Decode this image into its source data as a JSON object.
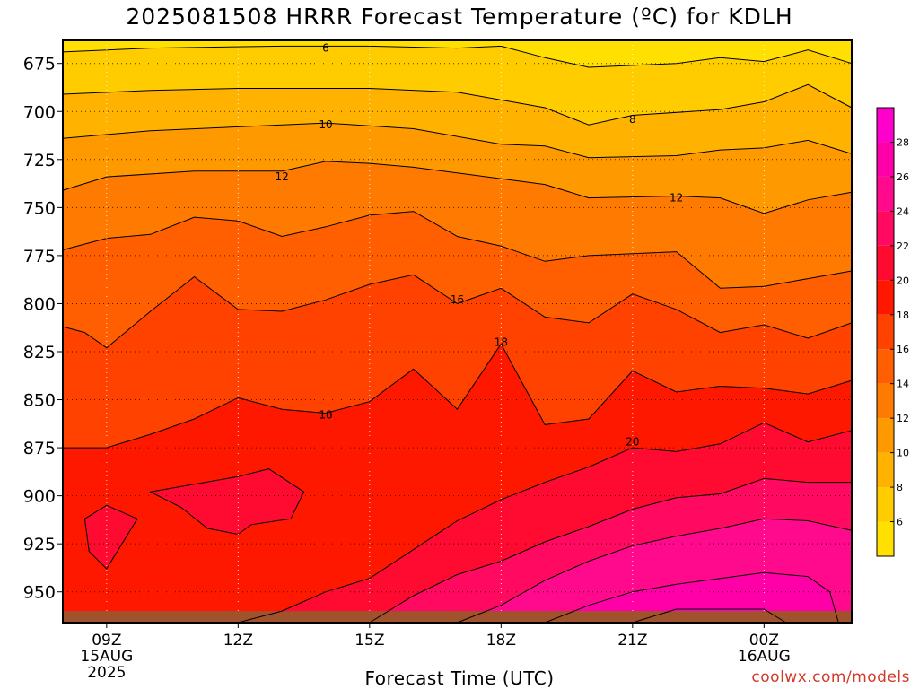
{
  "chart_data": {
    "type": "contour",
    "title": "2025081508 HRRR Forecast Temperature (ºC) for KDLH",
    "xlabel": "Forecast Time (UTC)",
    "ylabel": "",
    "credit": "coolwx.com/models",
    "x_ticks": [
      {
        "label": "09Z",
        "sub": [
          "15AUG",
          "2025"
        ],
        "hour": 9
      },
      {
        "label": "12Z",
        "sub": [],
        "hour": 12
      },
      {
        "label": "15Z",
        "sub": [],
        "hour": 15
      },
      {
        "label": "18Z",
        "sub": [],
        "hour": 18
      },
      {
        "label": "21Z",
        "sub": [],
        "hour": 21
      },
      {
        "label": "00Z",
        "sub": [
          "16AUG"
        ],
        "hour": 24
      }
    ],
    "xlim_hours": [
      8,
      26
    ],
    "y_ticks": [
      675,
      700,
      725,
      750,
      775,
      800,
      825,
      850,
      875,
      900,
      925,
      950
    ],
    "ylim_hpa": [
      663,
      966
    ],
    "colorbar": {
      "ticks": [
        6,
        8,
        10,
        12,
        14,
        16,
        18,
        20,
        22,
        24,
        26,
        28
      ],
      "bins": [
        {
          "low": 4,
          "high": 6,
          "color": "#ffe000"
        },
        {
          "low": 6,
          "high": 8,
          "color": "#ffcc00"
        },
        {
          "low": 8,
          "high": 10,
          "color": "#ffb300"
        },
        {
          "low": 10,
          "high": 12,
          "color": "#ff9900"
        },
        {
          "low": 12,
          "high": 14,
          "color": "#ff7a00"
        },
        {
          "low": 14,
          "high": 16,
          "color": "#ff5f00"
        },
        {
          "low": 16,
          "high": 18,
          "color": "#ff4200"
        },
        {
          "low": 18,
          "high": 20,
          "color": "#ff1800"
        },
        {
          "low": 20,
          "high": 22,
          "color": "#ff0a30"
        },
        {
          "low": 22,
          "high": 24,
          "color": "#ff0a60"
        },
        {
          "low": 24,
          "high": 26,
          "color": "#ff0a8c"
        },
        {
          "low": 26,
          "high": 28,
          "color": "#ff00a8"
        },
        {
          "low": 28,
          "high": 30,
          "color": "#ff00cc"
        }
      ]
    },
    "contour_labels": [
      {
        "text": "6",
        "hour": 14.0,
        "hpa": 667
      },
      {
        "text": "10",
        "hour": 14.0,
        "hpa": 707
      },
      {
        "text": "8",
        "hour": 21.0,
        "hpa": 704
      },
      {
        "text": "12",
        "hour": 13.0,
        "hpa": 734
      },
      {
        "text": "12",
        "hour": 22.0,
        "hpa": 745
      },
      {
        "text": "16",
        "hour": 17.0,
        "hpa": 798
      },
      {
        "text": "18",
        "hour": 18.0,
        "hpa": 820
      },
      {
        "text": "18",
        "hour": 14.0,
        "hpa": 858
      },
      {
        "text": "20",
        "hour": 21.0,
        "hpa": 872
      }
    ],
    "isotherms": [
      {
        "value": 6,
        "points": [
          [
            8,
            669
          ],
          [
            10,
            667
          ],
          [
            13,
            666
          ],
          [
            15,
            666
          ],
          [
            17,
            667
          ],
          [
            18,
            666
          ],
          [
            19,
            672
          ],
          [
            20,
            677
          ],
          [
            22,
            675
          ],
          [
            23,
            672
          ],
          [
            24,
            674
          ],
          [
            25,
            668
          ],
          [
            26,
            675
          ]
        ]
      },
      {
        "value": 8,
        "points": [
          [
            8,
            691
          ],
          [
            10,
            689
          ],
          [
            12,
            688
          ],
          [
            15,
            688
          ],
          [
            17,
            690
          ],
          [
            19,
            698
          ],
          [
            20,
            707
          ],
          [
            21,
            702
          ],
          [
            23,
            699
          ],
          [
            24,
            695
          ],
          [
            25,
            686
          ],
          [
            26,
            698
          ]
        ]
      },
      {
        "value": 10,
        "points": [
          [
            8,
            714
          ],
          [
            10,
            710
          ],
          [
            12,
            708
          ],
          [
            14,
            706
          ],
          [
            16,
            709
          ],
          [
            18,
            717
          ],
          [
            19,
            718
          ],
          [
            20,
            724
          ],
          [
            22,
            723
          ],
          [
            23,
            720
          ],
          [
            24,
            719
          ],
          [
            25,
            715
          ],
          [
            26,
            722
          ]
        ]
      },
      {
        "value": 12,
        "points": [
          [
            8,
            741
          ],
          [
            9,
            734
          ],
          [
            11,
            731
          ],
          [
            13,
            731
          ],
          [
            14,
            726
          ],
          [
            15,
            727
          ],
          [
            16,
            729
          ],
          [
            17,
            732
          ],
          [
            19,
            738
          ],
          [
            20,
            745
          ],
          [
            22,
            744
          ],
          [
            23,
            745
          ],
          [
            24,
            753
          ],
          [
            25,
            746
          ],
          [
            26,
            742
          ]
        ]
      },
      {
        "value": 14,
        "points": [
          [
            8,
            772
          ],
          [
            9,
            766
          ],
          [
            10,
            764
          ],
          [
            11,
            755
          ],
          [
            12,
            757
          ],
          [
            13,
            765
          ],
          [
            14,
            760
          ],
          [
            15,
            754
          ],
          [
            16,
            752
          ],
          [
            17,
            765
          ],
          [
            18,
            770
          ],
          [
            19,
            778
          ],
          [
            20,
            775
          ],
          [
            22,
            773
          ],
          [
            23,
            792
          ],
          [
            24,
            791
          ],
          [
            25,
            787
          ],
          [
            26,
            783
          ]
        ]
      },
      {
        "value": 16,
        "points": [
          [
            8,
            812
          ],
          [
            8.5,
            815
          ],
          [
            9,
            823
          ],
          [
            10,
            804
          ],
          [
            11,
            786
          ],
          [
            12,
            803
          ],
          [
            13,
            804
          ],
          [
            14,
            798
          ],
          [
            15,
            790
          ],
          [
            16,
            785
          ],
          [
            17,
            800
          ],
          [
            18,
            792
          ],
          [
            19,
            807
          ],
          [
            20,
            810
          ],
          [
            21,
            795
          ],
          [
            22,
            803
          ],
          [
            23,
            815
          ],
          [
            24,
            811
          ],
          [
            25,
            818
          ],
          [
            26,
            810
          ]
        ]
      },
      {
        "value": 18,
        "points": [
          [
            8,
            875
          ],
          [
            9,
            875
          ],
          [
            10,
            868
          ],
          [
            11,
            860
          ],
          [
            12,
            849
          ],
          [
            13,
            855
          ],
          [
            14,
            857
          ],
          [
            15,
            851
          ],
          [
            16,
            834
          ],
          [
            17,
            855
          ],
          [
            18,
            821
          ],
          [
            19,
            863
          ],
          [
            20,
            860
          ],
          [
            21,
            835
          ],
          [
            22,
            846
          ],
          [
            23,
            843
          ],
          [
            24,
            844
          ],
          [
            25,
            847
          ],
          [
            26,
            840
          ]
        ]
      },
      {
        "value": 20,
        "points": [
          [
            12,
            966
          ],
          [
            13,
            960
          ],
          [
            14,
            950
          ],
          [
            15,
            943
          ],
          [
            16,
            928
          ],
          [
            17,
            913
          ],
          [
            18,
            902
          ],
          [
            19,
            893
          ],
          [
            20,
            885
          ],
          [
            21,
            875
          ],
          [
            22,
            877
          ],
          [
            23,
            873
          ],
          [
            24,
            862
          ],
          [
            25,
            872
          ],
          [
            26,
            866
          ]
        ]
      },
      {
        "value": 22,
        "points": [
          [
            15,
            966
          ],
          [
            16,
            952
          ],
          [
            17,
            941
          ],
          [
            18,
            934
          ],
          [
            19,
            924
          ],
          [
            20,
            916
          ],
          [
            21,
            907
          ],
          [
            22,
            901
          ],
          [
            23,
            899
          ],
          [
            24,
            891
          ],
          [
            25,
            893
          ],
          [
            26,
            893
          ]
        ]
      },
      {
        "value": 24,
        "points": [
          [
            17,
            966
          ],
          [
            18,
            957
          ],
          [
            19,
            944
          ],
          [
            20,
            934
          ],
          [
            21,
            926
          ],
          [
            22,
            921
          ],
          [
            23,
            917
          ],
          [
            24,
            912
          ],
          [
            25,
            913
          ],
          [
            26,
            918
          ]
        ]
      },
      {
        "value": 26,
        "points": [
          [
            19,
            966
          ],
          [
            20,
            957
          ],
          [
            21,
            950
          ],
          [
            22,
            946
          ],
          [
            23,
            943
          ],
          [
            24,
            940
          ],
          [
            25,
            942
          ],
          [
            25.5,
            950
          ],
          [
            25.7,
            966
          ]
        ]
      },
      {
        "value": 28,
        "points": [
          [
            21,
            966
          ],
          [
            22,
            959
          ],
          [
            23,
            959
          ],
          [
            24,
            959
          ],
          [
            24.5,
            966
          ]
        ]
      },
      {
        "value": 20,
        "closed": true,
        "points": [
          [
            10,
            898
          ],
          [
            11,
            894
          ],
          [
            12,
            890
          ],
          [
            12.7,
            886
          ],
          [
            13.5,
            898
          ],
          [
            13.2,
            912
          ],
          [
            12.3,
            915
          ],
          [
            12,
            920
          ],
          [
            11.3,
            917
          ],
          [
            10.7,
            906
          ]
        ]
      },
      {
        "value": 20,
        "closed": true,
        "points": [
          [
            8.5,
            912
          ],
          [
            9,
            905
          ],
          [
            9.7,
            912
          ],
          [
            9,
            938
          ],
          [
            8.6,
            929
          ]
        ]
      }
    ],
    "ground": {
      "color": "#a0522d",
      "top_hpa": 960
    }
  }
}
